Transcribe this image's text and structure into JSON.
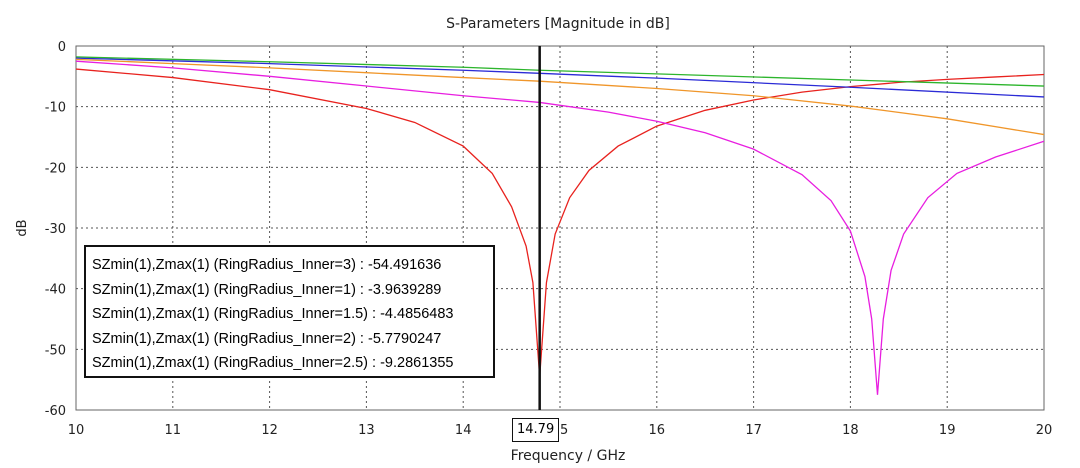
{
  "chart_data": {
    "type": "line",
    "title": "S-Parameters [Magnitude in dB]",
    "xlabel": "Frequency / GHz",
    "ylabel": "dB",
    "xlim": [
      10,
      20
    ],
    "ylim": [
      -60,
      0
    ],
    "xticks": [
      10,
      11,
      12,
      13,
      14,
      15,
      16,
      17,
      18,
      19,
      20
    ],
    "yticks": [
      0,
      -10,
      -20,
      -30,
      -40,
      -50,
      -60
    ],
    "grid": true,
    "legend_position": "bottom-left",
    "marker": {
      "x": 14.79,
      "label": "14.79"
    },
    "series": [
      {
        "name": "SZmin(1),Zmax(1) (RingRadius_Inner=3)",
        "marker_value": "-54.491636",
        "color": "#e8221e",
        "x": [
          10,
          11,
          12,
          13,
          13.5,
          14,
          14.3,
          14.5,
          14.65,
          14.72,
          14.79,
          14.86,
          14.95,
          15.1,
          15.3,
          15.6,
          16,
          16.5,
          17,
          17.5,
          18,
          18.5,
          19,
          19.5,
          20
        ],
        "y": [
          -3.8,
          -5.2,
          -7.2,
          -10.3,
          -12.6,
          -16.5,
          -21,
          -26.5,
          -33,
          -39,
          -54.5,
          -39,
          -31,
          -25,
          -20.5,
          -16.5,
          -13.2,
          -10.6,
          -8.9,
          -7.6,
          -6.7,
          -6,
          -5.5,
          -5.1,
          -4.7
        ]
      },
      {
        "name": "SZmin(1),Zmax(1) (RingRadius_Inner=1)",
        "marker_value": "-3.9639289",
        "color": "#2db52d",
        "x": [
          10,
          12,
          14,
          14.79,
          16,
          18,
          20
        ],
        "y": [
          -1.8,
          -2.6,
          -3.5,
          -4.0,
          -4.6,
          -5.6,
          -6.6
        ]
      },
      {
        "name": "SZmin(1),Zmax(1) (RingRadius_Inner=1.5)",
        "marker_value": "-4.4856483",
        "color": "#2b2bd6",
        "x": [
          10,
          12,
          14,
          14.79,
          16,
          18,
          20
        ],
        "y": [
          -2.0,
          -2.9,
          -4.0,
          -4.5,
          -5.3,
          -6.8,
          -8.4
        ]
      },
      {
        "name": "SZmin(1),Zmax(1) (RingRadius_Inner=2)",
        "marker_value": "-5.7790247",
        "color": "#f0962a",
        "x": [
          10,
          11,
          12,
          13,
          14,
          14.79,
          16,
          17,
          18,
          19,
          20
        ],
        "y": [
          -2.2,
          -2.9,
          -3.6,
          -4.4,
          -5.2,
          -5.8,
          -7.0,
          -8.2,
          -9.9,
          -12,
          -14.6
        ]
      },
      {
        "name": "SZmin(1),Zmax(1) (RingRadius_Inner=2.5)",
        "marker_value": "-9.2861355",
        "color": "#e81ee0",
        "x": [
          10,
          11,
          12,
          13,
          14,
          14.79,
          15.5,
          16,
          16.5,
          17,
          17.5,
          17.8,
          18,
          18.15,
          18.22,
          18.28,
          18.34,
          18.42,
          18.55,
          18.8,
          19.1,
          19.5,
          20
        ],
        "y": [
          -2.5,
          -3.6,
          -5,
          -6.6,
          -8.2,
          -9.3,
          -10.9,
          -12.4,
          -14.3,
          -17,
          -21.2,
          -25.5,
          -30.5,
          -38,
          -45,
          -57.5,
          -45,
          -37,
          -31,
          -25,
          -21,
          -18.3,
          -15.7
        ]
      }
    ]
  }
}
